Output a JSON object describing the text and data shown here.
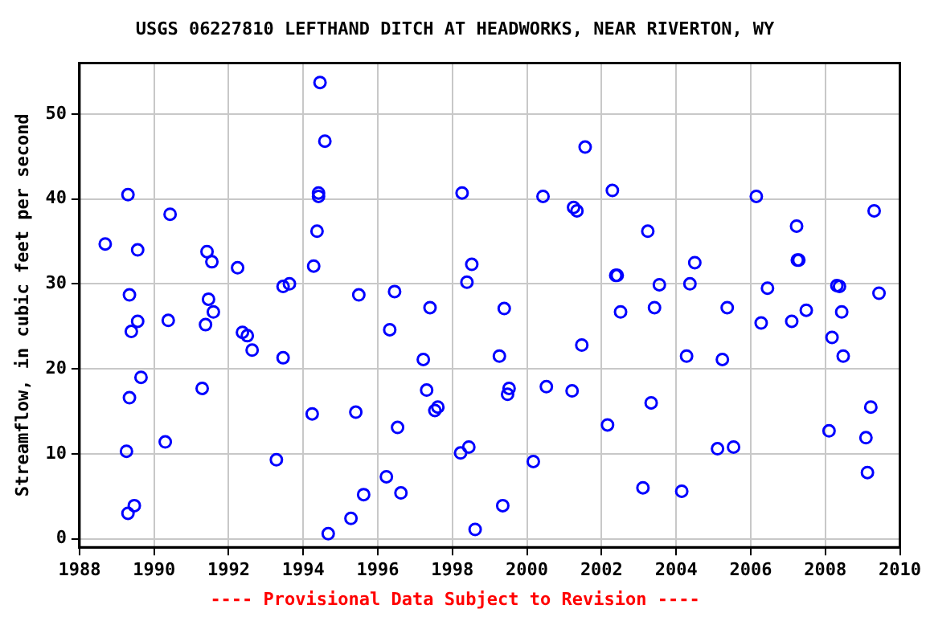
{
  "chart_data": {
    "type": "scatter",
    "title": "USGS 06227810 LEFTHAND DITCH AT HEADWORKS, NEAR RIVERTON, WY",
    "ylabel": "Streamflow, in cubic feet per second",
    "annotations": [
      "---- Provisional Data Subject to Revision ----"
    ],
    "series": [
      {
        "color": "#0000ff",
        "x": [
          1988.69,
          1989.3,
          1989.34,
          1989.34,
          1989.26,
          1989.47,
          1989.3,
          1989.39,
          1989.56,
          1989.56,
          1989.65,
          1990.3,
          1990.38,
          1990.43,
          1991.29,
          1991.38,
          1991.42,
          1991.46,
          1991.55,
          1991.59,
          1992.24,
          1992.37,
          1992.5,
          1992.63,
          1993.28,
          1993.46,
          1993.46,
          1993.63,
          1994.24,
          1994.28,
          1994.37,
          1994.41,
          1994.41,
          1994.45,
          1994.58,
          1994.67,
          1995.28,
          1995.41,
          1995.49,
          1995.62,
          1996.23,
          1996.32,
          1996.45,
          1996.53,
          1996.62,
          1997.22,
          1997.31,
          1997.4,
          1997.53,
          1997.61,
          1998.22,
          1998.26,
          1998.44,
          1998.39,
          1998.52,
          1998.61,
          1999.26,
          1999.35,
          1999.39,
          1999.52,
          1999.48,
          2000.17,
          2000.43,
          2000.52,
          2001.21,
          2001.25,
          2001.34,
          2001.47,
          2001.56,
          2002.16,
          2002.29,
          2002.38,
          2002.42,
          2002.51,
          2003.11,
          2003.24,
          2003.33,
          2003.42,
          2003.55,
          2004.15,
          2004.28,
          2004.37,
          2004.5,
          2005.11,
          2005.24,
          2005.37,
          2005.54,
          2006.15,
          2006.28,
          2006.45,
          2007.1,
          2007.23,
          2007.25,
          2007.29,
          2007.49,
          2008.1,
          2008.18,
          2008.31,
          2008.38,
          2008.44,
          2008.48,
          2009.09,
          2009.13,
          2009.22,
          2009.31,
          2009.44
        ],
        "values": [
          34.7,
          40.5,
          28.7,
          16.6,
          10.3,
          3.9,
          3.0,
          24.4,
          34.0,
          25.6,
          19.0,
          11.4,
          25.7,
          38.2,
          17.7,
          25.2,
          33.8,
          28.2,
          32.6,
          26.7,
          31.9,
          24.3,
          23.9,
          22.2,
          9.3,
          21.3,
          29.7,
          30.0,
          14.7,
          32.1,
          36.2,
          40.7,
          40.3,
          53.7,
          46.8,
          0.6,
          2.4,
          14.9,
          28.7,
          5.2,
          7.3,
          24.6,
          29.1,
          13.1,
          5.4,
          21.1,
          17.5,
          27.2,
          15.1,
          15.5,
          10.1,
          40.7,
          10.8,
          30.2,
          32.3,
          1.1,
          21.5,
          3.9,
          27.1,
          17.7,
          17.0,
          9.1,
          40.3,
          17.9,
          17.4,
          39.0,
          38.6,
          22.8,
          46.1,
          13.4,
          41.0,
          31.0,
          31.0,
          26.7,
          6.0,
          36.2,
          16.0,
          27.2,
          29.9,
          5.6,
          21.5,
          30.0,
          32.5,
          10.6,
          21.1,
          27.2,
          10.8,
          40.3,
          25.4,
          29.5,
          25.6,
          36.8,
          32.8,
          32.8,
          26.9,
          12.7,
          23.7,
          29.8,
          29.7,
          26.7,
          21.5,
          11.9,
          7.8,
          15.5,
          38.6,
          28.9
        ]
      }
    ],
    "xlim": [
      1988,
      2010
    ],
    "xticks": [
      1988,
      1990,
      1992,
      1994,
      1996,
      1998,
      2000,
      2002,
      2004,
      2006,
      2008,
      2010
    ],
    "ylim": [
      -1,
      56
    ],
    "yticks": [
      0,
      10,
      20,
      30,
      40,
      50
    ],
    "grid": true,
    "marker": "circle",
    "legend": false
  }
}
